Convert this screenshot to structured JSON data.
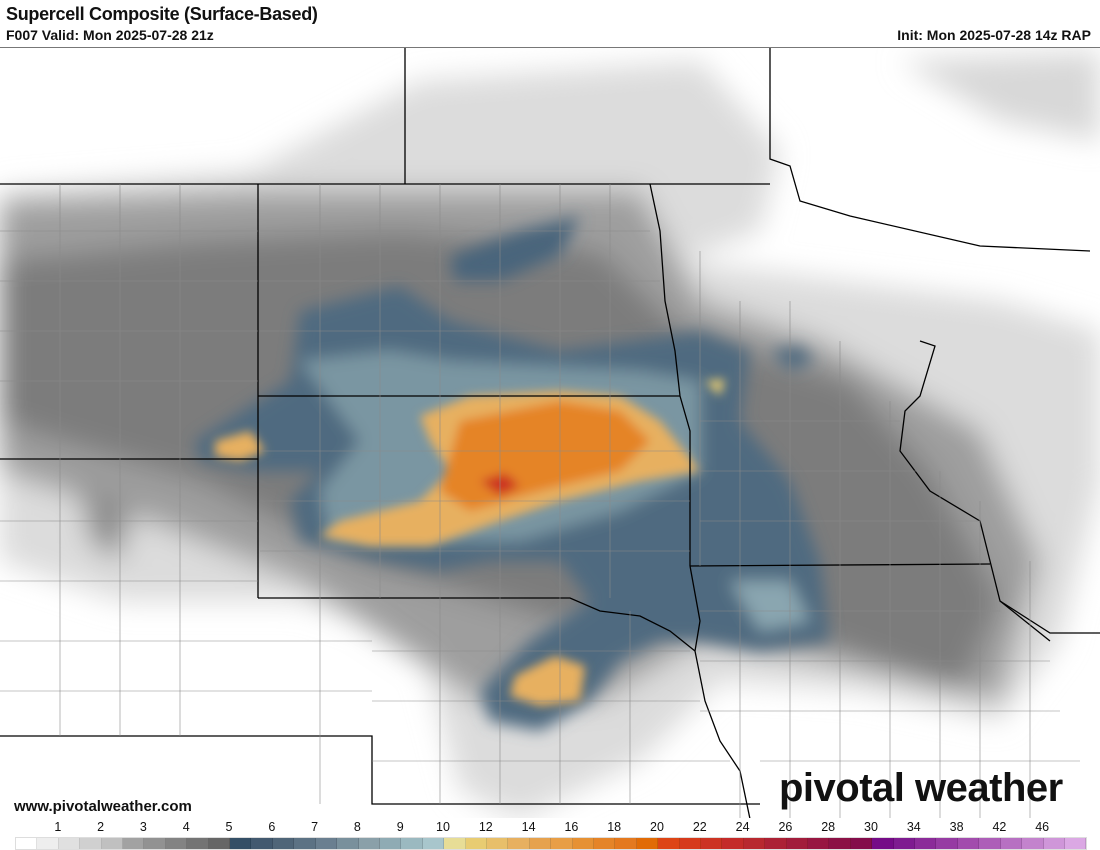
{
  "header": {
    "title": "Supercell Composite (Surface-Based)",
    "valid": "F007 Valid: Mon 2025-07-28 21z",
    "init": "Init: Mon 2025-07-28 14z RAP"
  },
  "footer": {
    "website": "www.pivotalweather.com",
    "brand": "pivotal weather"
  },
  "colorbar": {
    "labels": [
      "1",
      "2",
      "3",
      "4",
      "5",
      "6",
      "7",
      "8",
      "9",
      "10",
      "12",
      "14",
      "16",
      "18",
      "20",
      "22",
      "24",
      "26",
      "28",
      "30",
      "34",
      "38",
      "42",
      "46"
    ],
    "label_cell_index": [
      2,
      4,
      6,
      8,
      10,
      12,
      14,
      16,
      18,
      20,
      22,
      24,
      26,
      28,
      30,
      32,
      34,
      36,
      38,
      40,
      42,
      44,
      46,
      48
    ],
    "colors": [
      "#ffffff",
      "#eeeeee",
      "#e0e0e0",
      "#d0d0d0",
      "#c0c0c0",
      "#a2a2a2",
      "#929292",
      "#838383",
      "#747474",
      "#666666",
      "#344f66",
      "#42596f",
      "#4f6578",
      "#5c7284",
      "#6a7f90",
      "#79909c",
      "#8aa0a9",
      "#8fabb4",
      "#9bb9c0",
      "#a8c6cc",
      "#e7dd96",
      "#e8cc72",
      "#e8bf6a",
      "#e7b060",
      "#e6a24e",
      "#e89e46",
      "#e69134",
      "#e58428",
      "#e4791f",
      "#e16b06",
      "#dd4515",
      "#d63a1c",
      "#cc3323",
      "#c42b2a",
      "#b8282f",
      "#ac2135",
      "#a21c3b",
      "#981641",
      "#8c1146",
      "#840c4b",
      "#750b87",
      "#7e1b90",
      "#8b2b99",
      "#963ba3",
      "#a24cad",
      "#ad5eb8",
      "#b770c2",
      "#c383cd",
      "#cf96d9",
      "#dba8e4"
    ]
  },
  "map": {
    "field": "supercell composite parameter",
    "region": "Northern Plains / Upper Midwest"
  }
}
